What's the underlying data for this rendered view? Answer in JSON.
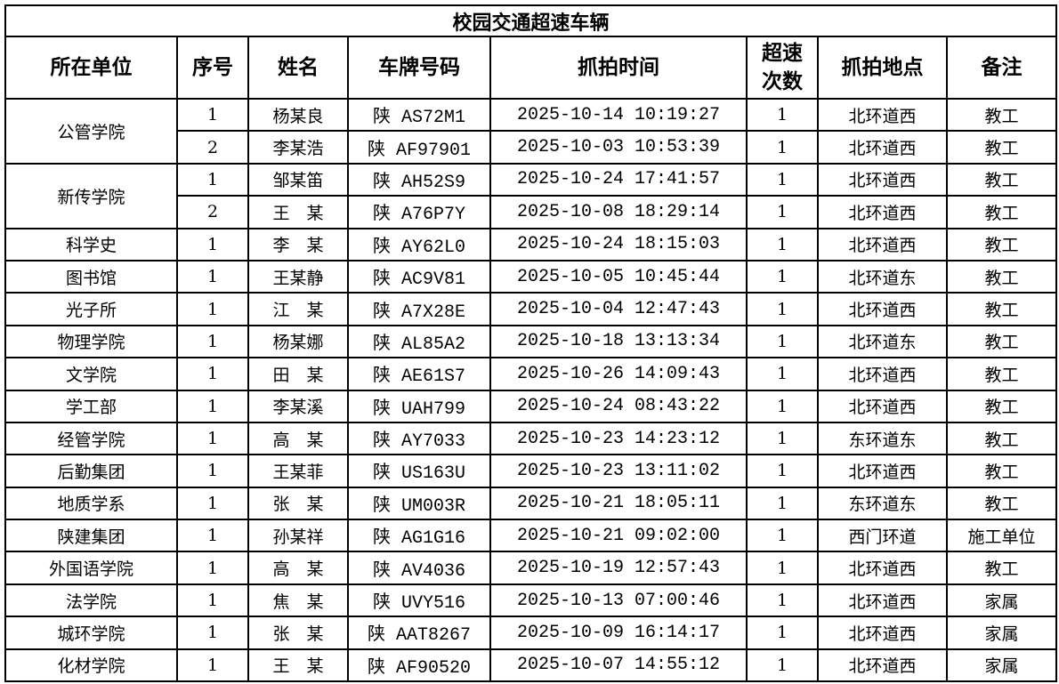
{
  "title": "校园交通超速车辆",
  "headers": [
    "所在单位",
    "序号",
    "姓名",
    "车牌号码",
    "抓拍时间",
    "超速次数",
    "抓拍地点",
    "备注"
  ],
  "groups": [
    {
      "unit": "公管学院",
      "rows": [
        {
          "no": "1",
          "name": "杨某良",
          "plate": "陕 AS72M1",
          "time": "2025-10-14 10:19:27",
          "count": "1",
          "place": "北环道西",
          "note": "教工"
        },
        {
          "no": "2",
          "name": "李某浩",
          "plate": "陕 AF97901",
          "time": "2025-10-03 10:53:39",
          "count": "1",
          "place": "北环道西",
          "note": "教工"
        }
      ]
    },
    {
      "unit": "新传学院",
      "rows": [
        {
          "no": "1",
          "name": "邹某笛",
          "plate": "陕 AH52S9",
          "time": "2025-10-24 17:41:57",
          "count": "1",
          "place": "北环道西",
          "note": "教工"
        },
        {
          "no": "2",
          "name": "王　某",
          "plate": "陕 A76P7Y",
          "time": "2025-10-08 18:29:14",
          "count": "1",
          "place": "北环道西",
          "note": "教工"
        }
      ]
    },
    {
      "unit": "科学史",
      "rows": [
        {
          "no": "1",
          "name": "李　某",
          "plate": "陕 AY62L0",
          "time": "2025-10-24 18:15:03",
          "count": "1",
          "place": "北环道西",
          "note": "教工"
        }
      ]
    },
    {
      "unit": "图书馆",
      "rows": [
        {
          "no": "1",
          "name": "王某静",
          "plate": "陕 AC9V81",
          "time": "2025-10-05 10:45:44",
          "count": "1",
          "place": "北环道东",
          "note": "教工"
        }
      ]
    },
    {
      "unit": "光子所",
      "rows": [
        {
          "no": "1",
          "name": "江　某",
          "plate": "陕 A7X28E",
          "time": "2025-10-04 12:47:43",
          "count": "1",
          "place": "北环道西",
          "note": "教工"
        }
      ]
    },
    {
      "unit": "物理学院",
      "rows": [
        {
          "no": "1",
          "name": "杨某娜",
          "plate": "陕 AL85A2",
          "time": "2025-10-18 13:13:34",
          "count": "1",
          "place": "北环道东",
          "note": "教工"
        }
      ]
    },
    {
      "unit": "文学院",
      "rows": [
        {
          "no": "1",
          "name": "田　某",
          "plate": "陕 AE61S7",
          "time": "2025-10-26 14:09:43",
          "count": "1",
          "place": "北环道西",
          "note": "教工"
        }
      ]
    },
    {
      "unit": "学工部",
      "rows": [
        {
          "no": "1",
          "name": "李某溪",
          "plate": "陕 UAH799",
          "time": "2025-10-24 08:43:22",
          "count": "1",
          "place": "北环道西",
          "note": "教工"
        }
      ]
    },
    {
      "unit": "经管学院",
      "rows": [
        {
          "no": "1",
          "name": "高　某",
          "plate": "陕 AY7033",
          "time": "2025-10-23 14:23:12",
          "count": "1",
          "place": "东环道东",
          "note": "教工"
        }
      ]
    },
    {
      "unit": "后勤集团",
      "rows": [
        {
          "no": "1",
          "name": "王某菲",
          "plate": "陕 US163U",
          "time": "2025-10-23 13:11:02",
          "count": "1",
          "place": "北环道西",
          "note": "教工"
        }
      ]
    },
    {
      "unit": "地质学系",
      "rows": [
        {
          "no": "1",
          "name": "张　某",
          "plate": "陕 UM003R",
          "time": "2025-10-21 18:05:11",
          "count": "1",
          "place": "东环道东",
          "note": "教工"
        }
      ]
    },
    {
      "unit": "陕建集团",
      "rows": [
        {
          "no": "1",
          "name": "孙某祥",
          "plate": "陕 AG1G16",
          "time": "2025-10-21 09:02:00",
          "count": "1",
          "place": "西门环道",
          "note": "施工单位"
        }
      ]
    },
    {
      "unit": "外国语学院",
      "rows": [
        {
          "no": "1",
          "name": "高　某",
          "plate": "陕 AV4036",
          "time": "2025-10-19 12:57:43",
          "count": "1",
          "place": "北环道西",
          "note": "教工"
        }
      ]
    },
    {
      "unit": "法学院",
      "rows": [
        {
          "no": "1",
          "name": "焦　某",
          "plate": "陕 UVY516",
          "time": "2025-10-13 07:00:46",
          "count": "1",
          "place": "北环道西",
          "note": "家属"
        }
      ]
    },
    {
      "unit": "城环学院",
      "rows": [
        {
          "no": "1",
          "name": "张　某",
          "plate": "陕 AAT8267",
          "time": "2025-10-09 16:14:17",
          "count": "1",
          "place": "北环道西",
          "note": "家属"
        }
      ]
    },
    {
      "unit": "化材学院",
      "rows": [
        {
          "no": "1",
          "name": "王　某",
          "plate": "陕 AF90520",
          "time": "2025-10-07 14:55:12",
          "count": "1",
          "place": "北环道西",
          "note": "家属"
        }
      ]
    }
  ]
}
